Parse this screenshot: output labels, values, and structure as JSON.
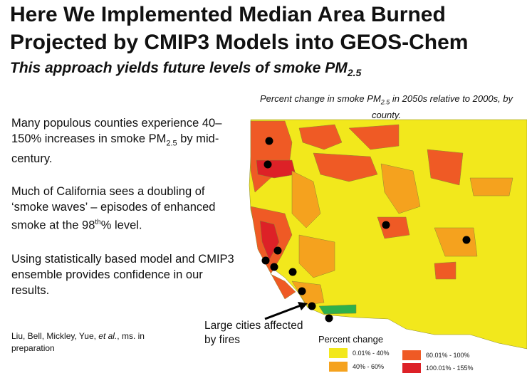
{
  "title_line1": "Here We Implemented Median Area Burned",
  "title_line2": "Projected by CMIP3 Models into GEOS-Chem",
  "subtitle": {
    "prefix": "This approach yields future levels of smoke PM",
    "sub": "2.5"
  },
  "map": {
    "title_prefix": "Percent change in smoke PM",
    "title_sub": "2.5",
    "title_suffix": " in 2050s relative to 2000s, by county.",
    "colors": {
      "low": "#f2e81c",
      "mid": "#f5a21e",
      "high": "#ef5a25",
      "top": "#dd2127",
      "other": "#2eb04b",
      "city": "#000000"
    },
    "callout": "Large cities affected by fires",
    "legend": {
      "title": "Percent change",
      "items": [
        {
          "label": "0.01% - 40%",
          "color": "#f2e81c"
        },
        {
          "label": "40% - 60%",
          "color": "#f5a21e"
        },
        {
          "label": "60.01% - 100%",
          "color": "#ef5a25"
        },
        {
          "label": "100.01% - 155%",
          "color": "#dd2127"
        }
      ]
    }
  },
  "paragraphs": {
    "p1_a": "Many populous counties experience 40–150% increases in smoke PM",
    "p1_sub": "2.5",
    "p1_b": " by mid-century.",
    "p2_a": "Much of California sees a doubling of ‘smoke waves’ – episodes of enhanced smoke at the 98",
    "p2_sup": "th",
    "p2_b": "% level.",
    "p3": "Using statistically based model and CMIP3 ensemble provides confidence in our results."
  },
  "citation": {
    "a": "Liu, Bell, Mickley, Yue, ",
    "b": "et al.",
    "c": ", ms. in preparation"
  }
}
